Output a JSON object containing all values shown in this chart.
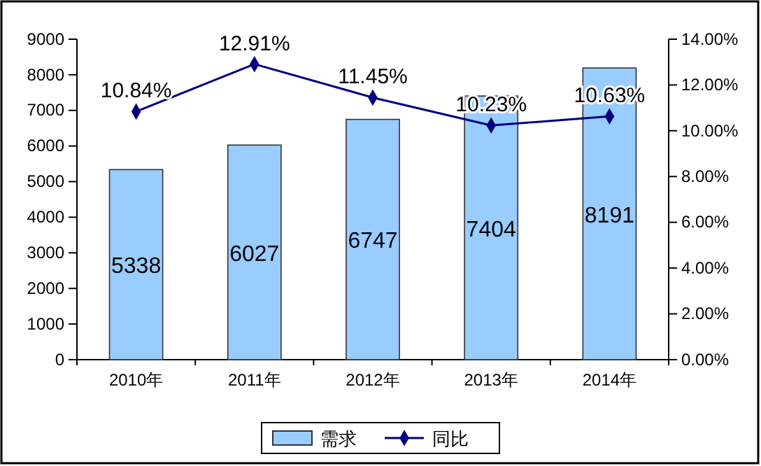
{
  "chart_data": {
    "type": "bar",
    "categories": [
      "2010年",
      "2011年",
      "2012年",
      "2013年",
      "2014年"
    ],
    "series": [
      {
        "name": "需求",
        "color": "#99ccff",
        "values": [
          5338,
          6027,
          6747,
          7404,
          8191
        ],
        "value_labels": [
          "5338",
          "6027",
          "6747",
          "7404",
          "8191"
        ]
      },
      {
        "name": "同比",
        "type": "line",
        "axis": "y2",
        "color": "#000080",
        "marker": "diamond",
        "values": [
          10.84,
          12.91,
          11.45,
          10.23,
          10.63
        ],
        "value_labels": [
          "10.84%",
          "12.91%",
          "11.45%",
          "10.23%",
          "10.63%"
        ]
      }
    ],
    "ylim": [
      0,
      9000
    ],
    "yticks": [
      0,
      1000,
      2000,
      3000,
      4000,
      5000,
      6000,
      7000,
      8000,
      9000
    ],
    "y2lim": [
      0,
      14
    ],
    "y2ticks": [
      {
        "value": 0,
        "label": "0.00%"
      },
      {
        "value": 2,
        "label": "2.00%"
      },
      {
        "value": 4,
        "label": "4.00%"
      },
      {
        "value": 6,
        "label": "6.00%"
      },
      {
        "value": 8,
        "label": "8.00%"
      },
      {
        "value": 10,
        "label": "10.00%"
      },
      {
        "value": 12,
        "label": "12.00%"
      },
      {
        "value": 14,
        "label": "14.00%"
      }
    ],
    "legend": "bottom",
    "grid": false
  }
}
